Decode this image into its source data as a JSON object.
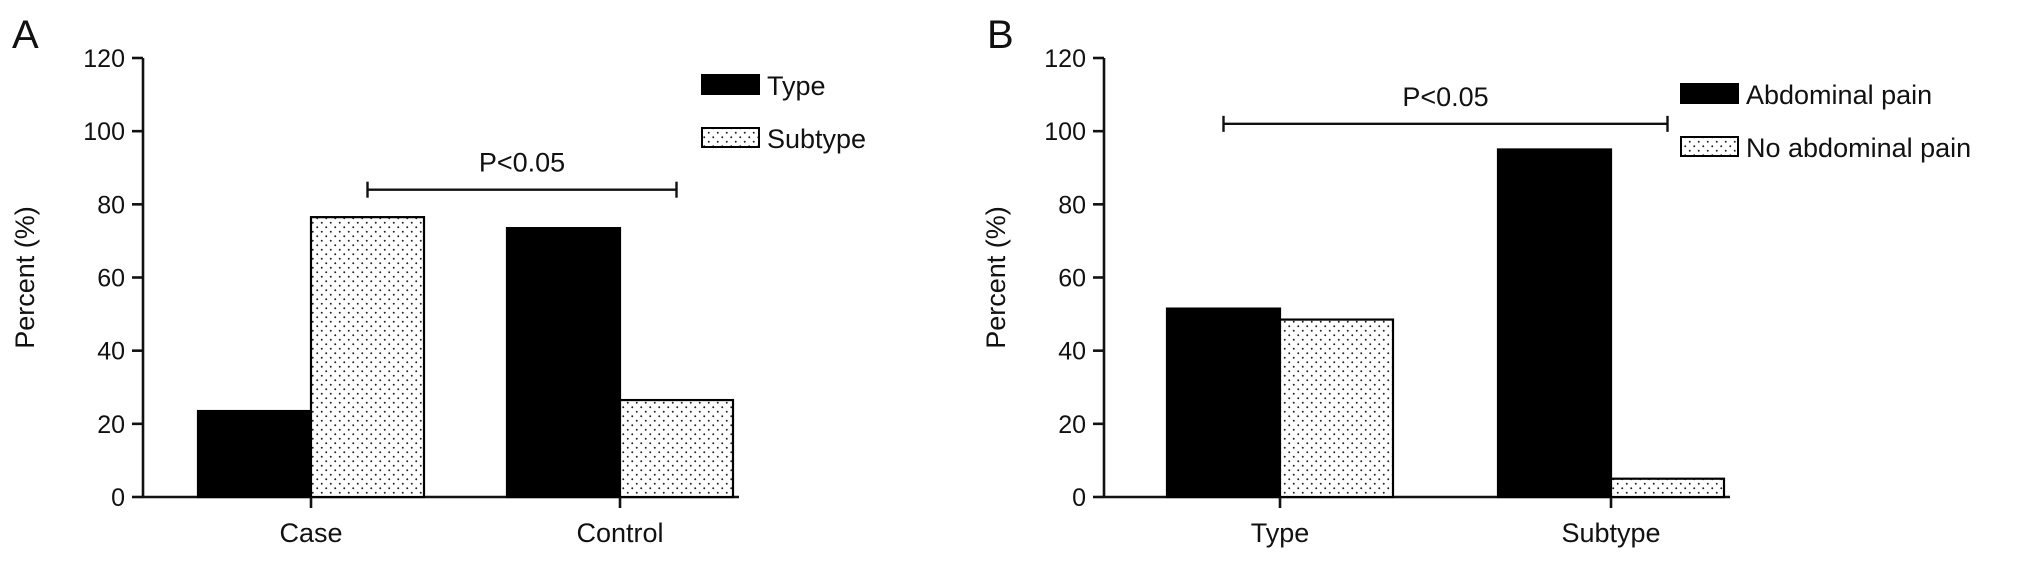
{
  "colors": {
    "solid": "#000000",
    "dotted_fill": "#ffffff",
    "dot": "#222222",
    "axis": "#111111"
  },
  "chart_data": [
    {
      "panel": "A",
      "type": "bar",
      "categories": [
        "Case",
        "Control"
      ],
      "series": [
        {
          "name": "Type",
          "pattern": "solid",
          "values": [
            23.5,
            73.5
          ]
        },
        {
          "name": "Subtype",
          "pattern": "dotted",
          "values": [
            76.5,
            26.5
          ]
        }
      ],
      "ylabel": "Percent (%)",
      "xlabel": "",
      "ylim": [
        0,
        120
      ],
      "yticks": [
        0,
        20,
        40,
        60,
        80,
        100,
        120
      ],
      "legend_position": "top-right",
      "significance": {
        "label": "P<0.05",
        "y": 84,
        "from": [
          "Case",
          "Subtype"
        ],
        "to": [
          "Control",
          "Subtype"
        ]
      }
    },
    {
      "panel": "B",
      "type": "bar",
      "categories": [
        "Type",
        "Subtype"
      ],
      "series": [
        {
          "name": "Abdominal pain",
          "pattern": "solid",
          "values": [
            51.5,
            95
          ]
        },
        {
          "name": "No abdominal pain",
          "pattern": "dotted",
          "values": [
            48.5,
            5
          ]
        }
      ],
      "ylabel": "Percent (%)",
      "xlabel": "",
      "ylim": [
        0,
        120
      ],
      "yticks": [
        0,
        20,
        40,
        60,
        80,
        100,
        120
      ],
      "legend_position": "top-right",
      "significance": {
        "label": "P<0.05",
        "y": 102,
        "from": [
          "Type",
          "Abdominal pain"
        ],
        "to": [
          "Subtype",
          "No abdominal pain"
        ]
      }
    }
  ]
}
